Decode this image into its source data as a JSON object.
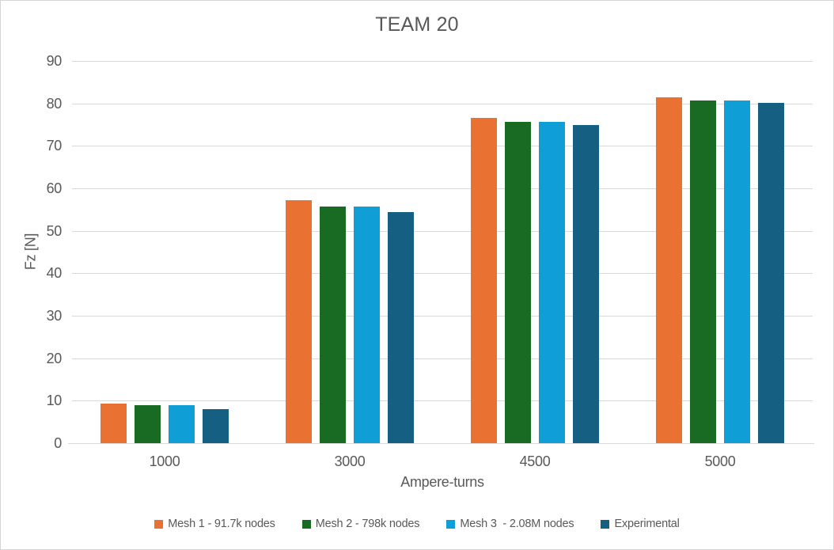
{
  "chart_data": {
    "type": "bar",
    "title": "TEAM 20",
    "xlabel": "Ampere-turns",
    "ylabel": "Fz [N]",
    "categories": [
      "1000",
      "3000",
      "4500",
      "5000"
    ],
    "series": [
      {
        "name": "Mesh 1 - 91.7k nodes",
        "color": "#E97132",
        "values": [
          9.4,
          57.2,
          76.5,
          81.5
        ]
      },
      {
        "name": "Mesh 2 - 798k nodes",
        "color": "#196B24",
        "values": [
          8.9,
          55.8,
          75.6,
          80.6
        ]
      },
      {
        "name": "Mesh 3  - 2.08M nodes",
        "color": "#0F9ED5",
        "values": [
          8.9,
          55.8,
          75.6,
          80.6
        ]
      },
      {
        "name": "Experimental",
        "color": "#156082",
        "values": [
          8.1,
          54.4,
          75.0,
          80.1
        ]
      }
    ],
    "ylim": [
      0,
      90
    ],
    "yticks": [
      0,
      10,
      20,
      30,
      40,
      50,
      60,
      70,
      80,
      90
    ],
    "grid": true,
    "legend_position": "bottom",
    "text_color": "#595959",
    "gridline_color": "#D9D9D9"
  }
}
